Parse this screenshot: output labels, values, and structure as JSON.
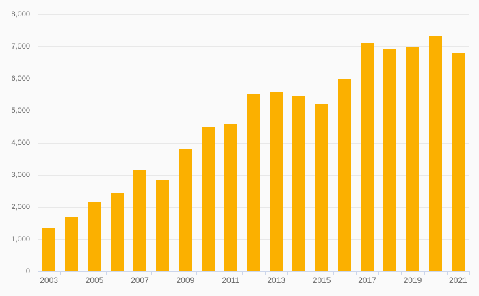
{
  "chart_data": {
    "type": "bar",
    "title": "",
    "xlabel": "",
    "ylabel": "",
    "categories": [
      "2003",
      "2004",
      "2005",
      "2006",
      "2007",
      "2008",
      "2009",
      "2010",
      "2011",
      "2012",
      "2013",
      "2014",
      "2015",
      "2016",
      "2017",
      "2018",
      "2019",
      "2020",
      "2021"
    ],
    "values": [
      1330,
      1680,
      2150,
      2450,
      3160,
      2850,
      3800,
      4490,
      4580,
      5510,
      5570,
      5450,
      5210,
      5990,
      7110,
      6920,
      6980,
      7310,
      6780
    ],
    "ylim": [
      0,
      8000
    ],
    "y_tick_step": 1000,
    "y_tick_labels": [
      "0",
      "1,000",
      "2,000",
      "3,000",
      "4,000",
      "5,000",
      "6,000",
      "7,000",
      "8,000"
    ],
    "x_labeled_categories": [
      "2003",
      "2005",
      "2007",
      "2009",
      "2011",
      "2013",
      "2015",
      "2017",
      "2019",
      "2021"
    ],
    "grid": true,
    "legend_position": "none",
    "colors": {
      "bar": "#FBB000",
      "background": "#FAFAFA",
      "gridline": "#E8E8E8",
      "axis_line": "#CCD6EB",
      "tick": "#CCD6EB",
      "label": "#666666"
    }
  }
}
